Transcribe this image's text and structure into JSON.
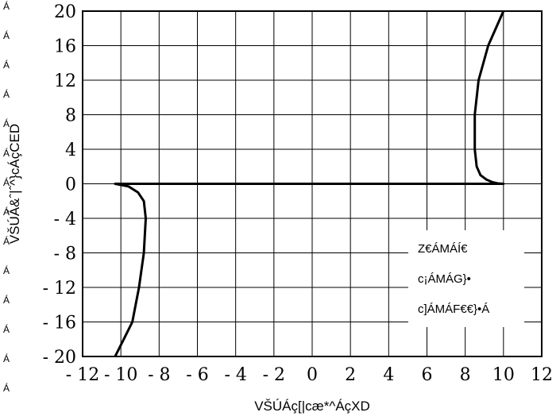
{
  "chart_data": {
    "type": "line",
    "xlabel": "VŠÚÁç[|cæ*^ÁçXD",
    "ylabel": "VŠÚÁ&ˆ|ˆ^}cÁçCED",
    "xlim": [
      -12,
      12
    ],
    "ylim": [
      -20,
      20
    ],
    "x_ticks": [
      "- 12",
      "- 10",
      "- 8",
      "- 6",
      "- 4",
      "- 2",
      "0",
      "2",
      "4",
      "6",
      "8",
      "10",
      "12"
    ],
    "y_ticks": [
      "20",
      "16",
      "12",
      "8",
      "4",
      "0",
      "- 4",
      "- 8",
      "- 12",
      "- 16",
      "- 20"
    ],
    "grid": true,
    "legend_lines": [
      "Z€ÁMÁÍ€",
      "c¡ÁMÁG}•",
      "c]ÁMÁF€€}•Á"
    ],
    "legend_position": "bottom-right",
    "side_marks": [
      "Á",
      "Á",
      "Á",
      "Á",
      "Á",
      "Á",
      "Á",
      "Á",
      "Á",
      "Á",
      "Á",
      "Á",
      "Á",
      "Á"
    ],
    "series": [
      {
        "x": [
          10,
          9.2,
          8.7,
          8.5,
          8.5,
          8.6,
          8.8,
          9.1,
          9.4,
          9.7,
          10,
          -10.3,
          -9.6,
          -9.1,
          -8.8,
          -8.7,
          -8.8,
          -9.05,
          -9.4,
          -9.85,
          -10.3
        ],
        "y": [
          20,
          16,
          12,
          8,
          4,
          2,
          1,
          0.5,
          0.2,
          0.05,
          0,
          0,
          -0.3,
          -1,
          -2,
          -4,
          -8,
          -12,
          -16,
          -18,
          -20
        ]
      }
    ]
  }
}
